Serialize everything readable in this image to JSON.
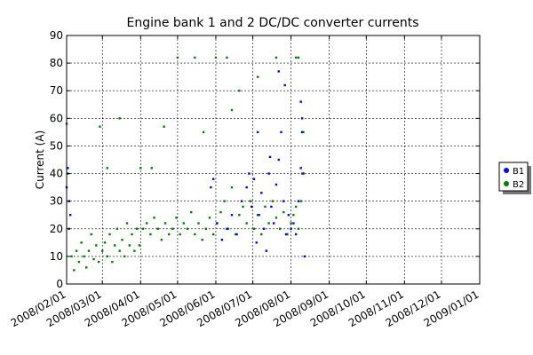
{
  "chart_data": {
    "type": "scatter",
    "title": "Engine bank 1 and 2 DC/DC converter currents",
    "xlabel": "",
    "ylabel": "Current (A)",
    "xlim": [
      "2008/02/01",
      "2009/01/01"
    ],
    "ylim": [
      0,
      90
    ],
    "yticks": [
      "0",
      "10",
      "20",
      "30",
      "40",
      "50",
      "60",
      "70",
      "80",
      "90"
    ],
    "xticks": [
      "2008/02/01",
      "2008/03/01",
      "2008/04/01",
      "2008/05/01",
      "2008/06/01",
      "2008/07/01",
      "2008/08/01",
      "2008/09/01",
      "2008/10/01",
      "2008/11/01",
      "2008/12/01",
      "2009/01/01"
    ],
    "grid": true,
    "legend": {
      "placement": "right",
      "entries": [
        "B1",
        "B2"
      ]
    },
    "series": [
      {
        "name": "B1",
        "color": "#0000ff",
        "x": [
          "2008/02/01",
          "2008/02/02",
          "2008/02/03",
          "2008/02/04",
          "2008/05/28",
          "2008/05/30",
          "2008/06/02",
          "2008/06/06",
          "2008/06/10",
          "2008/06/14",
          "2008/06/18",
          "2008/06/22",
          "2008/06/26",
          "2008/06/28",
          "2008/06/30",
          "2008/07/02",
          "2008/07/04",
          "2008/07/06",
          "2008/07/08",
          "2008/07/10",
          "2008/07/12",
          "2008/07/14",
          "2008/07/16",
          "2008/07/18",
          "2008/07/20",
          "2008/07/22",
          "2008/07/24",
          "2008/07/26",
          "2008/07/28",
          "2008/07/30",
          "2008/08/01",
          "2008/08/03",
          "2008/08/05",
          "2008/08/07",
          "2008/08/09",
          "2008/08/10",
          "2008/08/11",
          "2008/08/12",
          "2008/07/05",
          "2008/07/15",
          "2008/07/22",
          "2008/07/27",
          "2008/08/09",
          "2008/08/10"
        ],
        "values": [
          35,
          42,
          30,
          25,
          35,
          38,
          22,
          16,
          20,
          25,
          18,
          30,
          35,
          40,
          28,
          38,
          15,
          25,
          33,
          20,
          12,
          40,
          28,
          22,
          36,
          45,
          55,
          30,
          18,
          25,
          20,
          22,
          18,
          30,
          42,
          55,
          40,
          10,
          55,
          46,
          77,
          72,
          66,
          60
        ]
      },
      {
        "name": "B2",
        "color": "#008000",
        "x": [
          "2008/02/01",
          "2008/02/02",
          "2008/02/03",
          "2008/02/05",
          "2008/02/07",
          "2008/02/09",
          "2008/02/11",
          "2008/02/13",
          "2008/02/15",
          "2008/02/17",
          "2008/02/19",
          "2008/02/21",
          "2008/02/23",
          "2008/02/25",
          "2008/02/27",
          "2008/03/01",
          "2008/03/03",
          "2008/03/05",
          "2008/03/07",
          "2008/03/09",
          "2008/03/11",
          "2008/03/13",
          "2008/03/15",
          "2008/03/17",
          "2008/03/19",
          "2008/03/21",
          "2008/03/23",
          "2008/03/25",
          "2008/03/27",
          "2008/03/29",
          "2008/03/31",
          "2008/04/03",
          "2008/04/06",
          "2008/04/09",
          "2008/04/12",
          "2008/04/15",
          "2008/04/18",
          "2008/04/21",
          "2008/04/24",
          "2008/04/27",
          "2008/04/30",
          "2008/05/03",
          "2008/05/06",
          "2008/05/09",
          "2008/05/12",
          "2008/05/15",
          "2008/05/18",
          "2008/05/21",
          "2008/05/24",
          "2008/05/27",
          "2008/05/30",
          "2008/06/02",
          "2008/06/05",
          "2008/06/08",
          "2008/06/11",
          "2008/06/14",
          "2008/06/17",
          "2008/06/20",
          "2008/06/23",
          "2008/06/26",
          "2008/06/29",
          "2008/07/02",
          "2008/07/05",
          "2008/07/08",
          "2008/07/11",
          "2008/07/14",
          "2008/07/17",
          "2008/07/20",
          "2008/07/23",
          "2008/07/26",
          "2008/07/29",
          "2008/08/01",
          "2008/08/03",
          "2008/08/05",
          "2008/08/07",
          "2008/08/09",
          "2008/08/10",
          "2008/08/11",
          "2008/03/05",
          "2008/04/01",
          "2008/04/10",
          "2008/05/01",
          "2008/05/15",
          "2008/06/01",
          "2008/06/10",
          "2008/06/20",
          "2008/07/05",
          "2008/07/20",
          "2008/08/05",
          "2008/08/07",
          "2008/05/22",
          "2008/06/14",
          "2008/02/28",
          "2008/03/15",
          "2008/04/20"
        ],
        "values": [
          58,
          40,
          20,
          10,
          5,
          12,
          8,
          15,
          10,
          6,
          12,
          18,
          9,
          14,
          8,
          12,
          15,
          10,
          18,
          8,
          14,
          20,
          12,
          16,
          10,
          22,
          14,
          18,
          12,
          20,
          14,
          20,
          22,
          18,
          24,
          20,
          16,
          22,
          18,
          20,
          24,
          18,
          22,
          20,
          26,
          18,
          22,
          16,
          20,
          24,
          18,
          22,
          26,
          30,
          20,
          35,
          18,
          25,
          28,
          22,
          30,
          20,
          25,
          18,
          28,
          22,
          30,
          24,
          20,
          26,
          18,
          22,
          25,
          28,
          20,
          30,
          40,
          55,
          42,
          42,
          42,
          82,
          82,
          82,
          82,
          70,
          75,
          82,
          82,
          82,
          55,
          63,
          57,
          60,
          57
        ]
      }
    ]
  }
}
